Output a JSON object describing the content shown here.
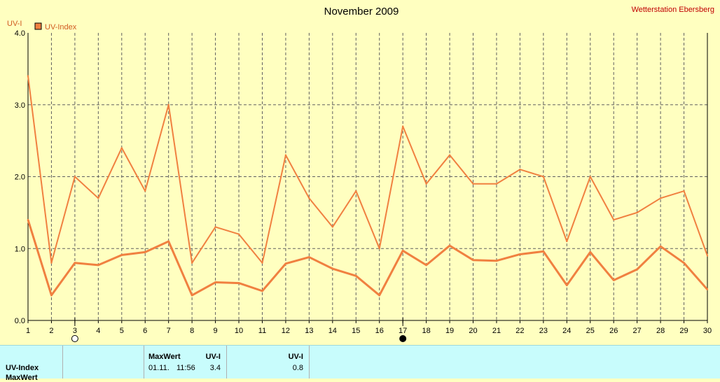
{
  "title": "November 2009",
  "station": "Wetterstation Ebersberg",
  "y_axis_label": "UV-I",
  "legend_label": "UV-Index",
  "colors": {
    "background": "#ffffc0",
    "series": "#f08040",
    "grid": "#606060",
    "panel": "#c8fcfc",
    "station": "#c00000"
  },
  "chart_data": {
    "type": "line",
    "title": "November 2009",
    "ylabel": "UV-I",
    "xlabel": "",
    "x": [
      1,
      2,
      3,
      4,
      5,
      6,
      7,
      8,
      9,
      10,
      11,
      12,
      13,
      14,
      15,
      16,
      17,
      18,
      19,
      20,
      21,
      22,
      23,
      24,
      25,
      26,
      27,
      28,
      29,
      30
    ],
    "xlim": [
      1,
      30
    ],
    "ylim": [
      0,
      4
    ],
    "yticks": [
      "0.0",
      "1.0",
      "2.0",
      "3.0",
      "4.0"
    ],
    "grid": true,
    "legend": "top-left",
    "series": [
      {
        "name": "UV-Index",
        "role": "max",
        "values": [
          3.4,
          0.8,
          2.0,
          1.7,
          2.4,
          1.8,
          3.0,
          0.8,
          1.3,
          1.2,
          0.8,
          2.3,
          1.7,
          1.3,
          1.8,
          1.0,
          2.7,
          1.9,
          2.3,
          1.9,
          1.9,
          2.1,
          2.0,
          1.1,
          2.0,
          1.4,
          1.5,
          1.7,
          1.8,
          0.9
        ]
      },
      {
        "name": "",
        "role": "mean",
        "values": [
          1.4,
          0.35,
          0.8,
          0.77,
          0.91,
          0.95,
          1.1,
          0.35,
          0.53,
          0.52,
          0.41,
          0.79,
          0.88,
          0.72,
          0.62,
          0.35,
          0.97,
          0.77,
          1.04,
          0.84,
          0.83,
          0.92,
          0.96,
          0.49,
          0.95,
          0.56,
          0.71,
          1.03,
          0.8,
          0.43
        ]
      }
    ],
    "markers": [
      {
        "day": 3,
        "icon": "open-circle-icon"
      },
      {
        "day": 17,
        "icon": "filled-circle-icon"
      }
    ]
  },
  "panel": {
    "row_label": "UV-Index",
    "row_label_2": "MaxWert",
    "max_header": "MaxWert",
    "unit_header": "UV-I",
    "max_date": "01.11.",
    "max_time": "11:56",
    "max_value": "3.4",
    "avg_header": "UV-I",
    "avg_value": "0.8"
  }
}
